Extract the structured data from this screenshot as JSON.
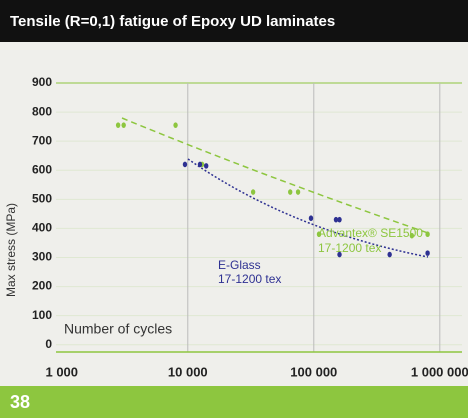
{
  "chart_data": {
    "type": "scatter",
    "title": "Tensile (R=0,1) fatigue of Epoxy UD laminates",
    "ylabel": "Max stress (MPa)",
    "xlabel": "Number of cycles",
    "xscale": "log",
    "xlim": [
      900,
      1500000
    ],
    "ylim": [
      -25,
      900
    ],
    "xticks": [
      {
        "value": 1000,
        "label": "1 000"
      },
      {
        "value": 10000,
        "label": "10 000"
      },
      {
        "value": 100000,
        "label": "100 000"
      },
      {
        "value": 1000000,
        "label": "1 000 000"
      }
    ],
    "yticks": [
      0,
      100,
      200,
      300,
      400,
      500,
      600,
      700,
      800,
      900
    ],
    "grid": true,
    "series": [
      {
        "name": "Advantex® SE1500",
        "subtitle": "17-1200 tex",
        "color": "#8dc63f",
        "x": [
          2800,
          3100,
          8000,
          13000,
          33000,
          65000,
          75000,
          110000,
          600000,
          800000
        ],
        "values": [
          755,
          755,
          755,
          620,
          525,
          525,
          525,
          380,
          375,
          380
        ]
      },
      {
        "name": "E-Glass",
        "subtitle": "17-1200 tex",
        "color": "#2e3192",
        "x": [
          9500,
          12500,
          14000,
          95000,
          150000,
          160000,
          160000,
          400000,
          800000
        ],
        "values": [
          620,
          620,
          615,
          435,
          430,
          430,
          310,
          310,
          315
        ]
      }
    ],
    "page_number": "38"
  }
}
